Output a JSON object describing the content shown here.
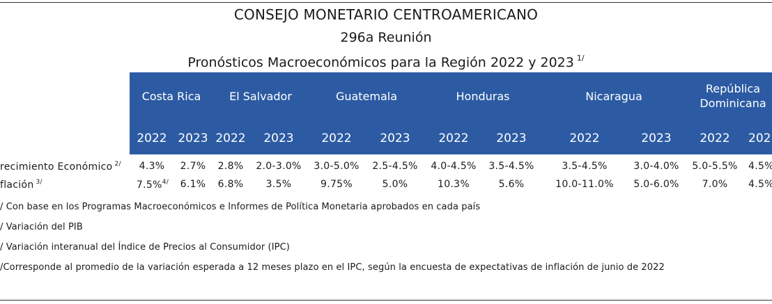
{
  "title": "CONSEJO MONETARIO CENTROAMERICANO",
  "subtitle": "296a Reunión",
  "subtitle2": "Pronósticos Macroeconómicos para la Región 2022 y 2023",
  "subtitle2_sup": "1/",
  "countries": [
    "Costa Rica",
    "El Salvador",
    "Guatemala",
    "Honduras",
    "Nicaragua",
    "República",
    "Dominicana"
  ],
  "years": [
    "2022",
    "2023",
    "2022",
    "2023",
    "2022",
    "2023",
    "2022",
    "2023",
    "2022",
    "2023",
    "2022",
    "202"
  ],
  "rows": [
    {
      "label": "recimiento Económico",
      "label_sup": "2/",
      "values": [
        "4.3%",
        "2.7%",
        "2.8%",
        "2.0-3.0%",
        "3.0-5.0%",
        "2.5-4.5%",
        "4.0-4.5%",
        "3.5-4.5%",
        "3.5-4.5%",
        "3.0-4.0%",
        "5.0-5.5%",
        "4.5%"
      ]
    },
    {
      "label": "flación",
      "label_sup": "3/",
      "values": [
        "7.5%",
        "6.1%",
        "6.8%",
        "3.5%",
        "9.75%",
        "5.0%",
        "10.3%",
        "5.6%",
        "10.0-11.0%",
        "5.0-6.0%",
        "7.0%",
        "4.5%"
      ],
      "first_sup": "4/"
    }
  ],
  "notes": [
    "/ Con base en los Programas Macroeconómicos e Informes de Política Monetaria aprobados en cada país",
    "/ Variación del PIB",
    "/ Variación interanual del Índice de Precios al Consumidor (IPC)",
    "/Corresponde al promedio de la variación esperada a 12 meses plazo en el IPC, según la encuesta de expectativas de inflación de junio de 2022"
  ]
}
